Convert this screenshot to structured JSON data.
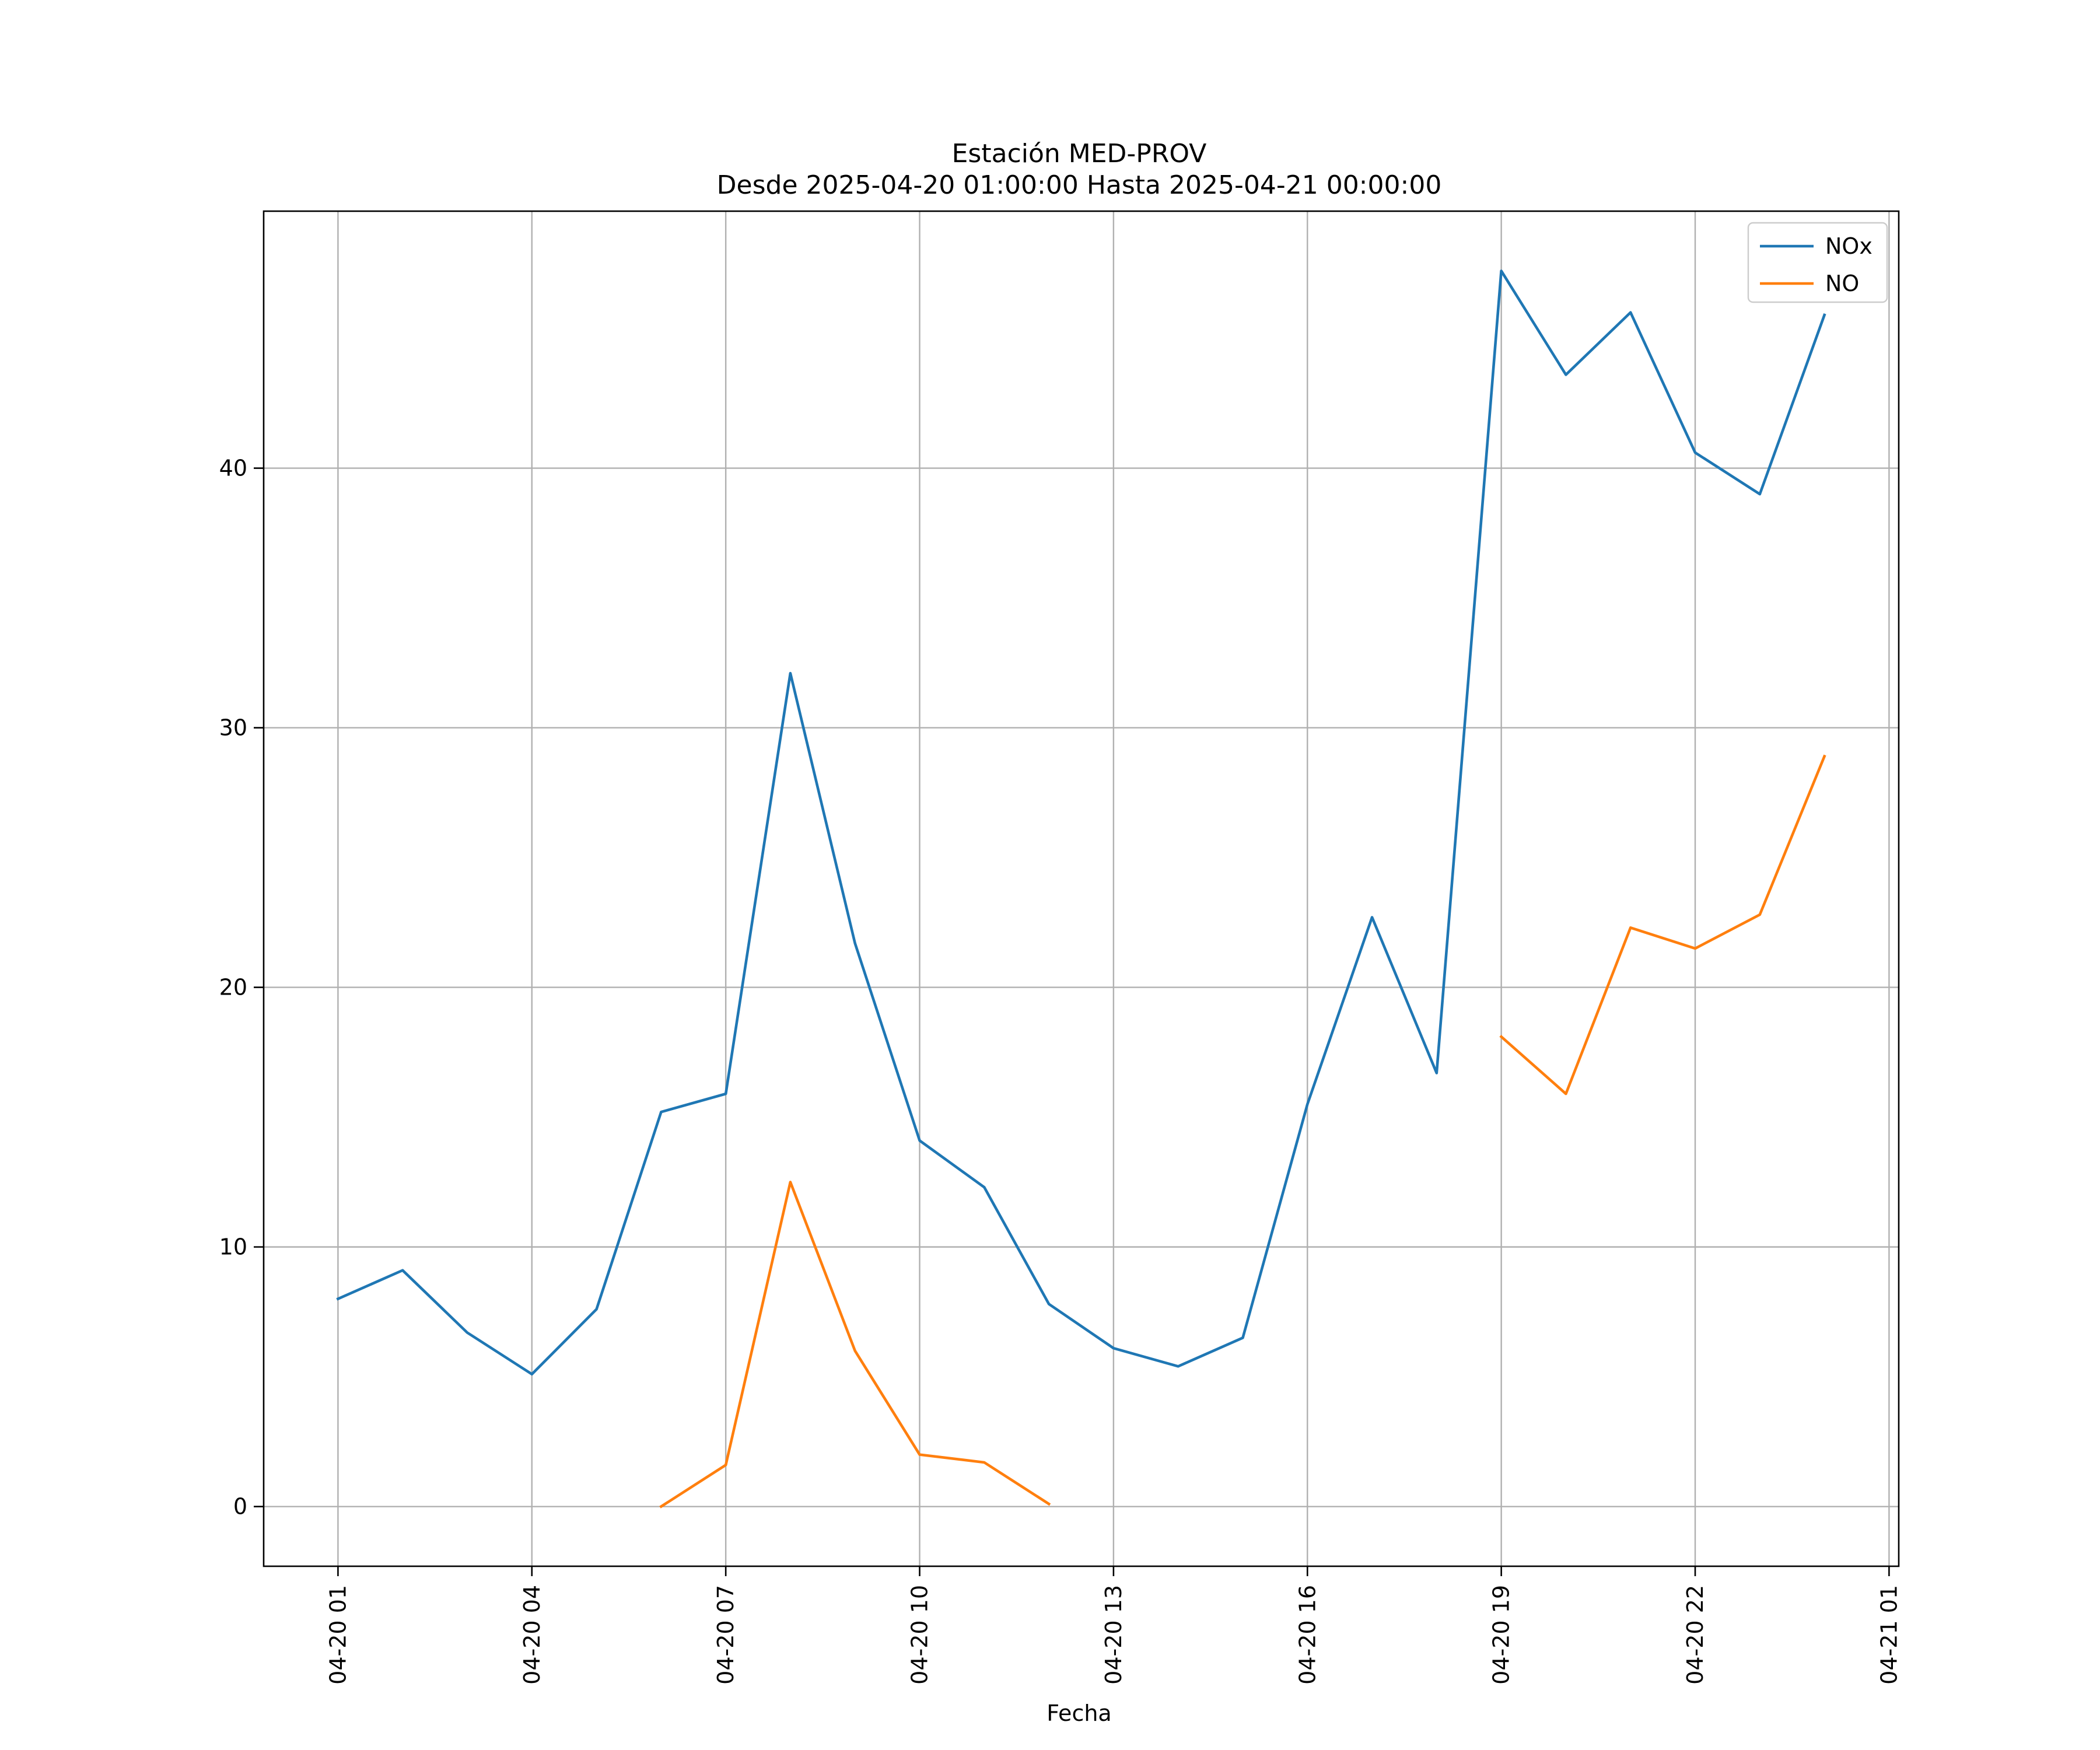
{
  "chart_data": {
    "type": "line",
    "title_line1": "Estación MED-PROV",
    "title_line2": "Desde 2025-04-20 01:00:00 Hasta 2025-04-21 00:00:00",
    "xlabel": "Fecha",
    "ylabel": "",
    "x": [
      "2025-04-20 01:00",
      "2025-04-20 02:00",
      "2025-04-20 03:00",
      "2025-04-20 04:00",
      "2025-04-20 05:00",
      "2025-04-20 06:00",
      "2025-04-20 07:00",
      "2025-04-20 08:00",
      "2025-04-20 09:00",
      "2025-04-20 10:00",
      "2025-04-20 11:00",
      "2025-04-20 12:00",
      "2025-04-20 13:00",
      "2025-04-20 14:00",
      "2025-04-20 15:00",
      "2025-04-20 16:00",
      "2025-04-20 17:00",
      "2025-04-20 18:00",
      "2025-04-20 19:00",
      "2025-04-20 20:00",
      "2025-04-20 21:00",
      "2025-04-20 22:00",
      "2025-04-20 23:00",
      "2025-04-21 00:00"
    ],
    "series": [
      {
        "name": "NOx",
        "color": "#1f77b4",
        "values": [
          8.0,
          9.1,
          6.7,
          5.1,
          7.6,
          15.2,
          15.9,
          32.1,
          21.7,
          14.1,
          12.3,
          7.8,
          6.1,
          5.4,
          6.5,
          15.5,
          22.7,
          16.7,
          47.6,
          43.6,
          46.0,
          40.6,
          39.0,
          45.9
        ]
      },
      {
        "name": "NO",
        "color": "#ff7f0e",
        "values": [
          null,
          null,
          null,
          null,
          null,
          0.0,
          1.6,
          12.5,
          6.0,
          2.0,
          1.7,
          0.1,
          null,
          null,
          null,
          null,
          null,
          null,
          18.1,
          15.9,
          22.3,
          21.5,
          22.8,
          28.9
        ]
      }
    ],
    "xticks": [
      "04-20 01",
      "04-20 04",
      "04-20 07",
      "04-20 10",
      "04-20 13",
      "04-20 16",
      "04-20 19",
      "04-20 22",
      "04-21 01"
    ],
    "yticks": [
      "0",
      "10",
      "20",
      "30",
      "40"
    ],
    "xlim": [
      "2025-04-19 23:51",
      "2025-04-21 01:09"
    ],
    "ylim": [
      -2.3,
      49.9
    ],
    "grid": true,
    "legend_position": "top-right"
  }
}
